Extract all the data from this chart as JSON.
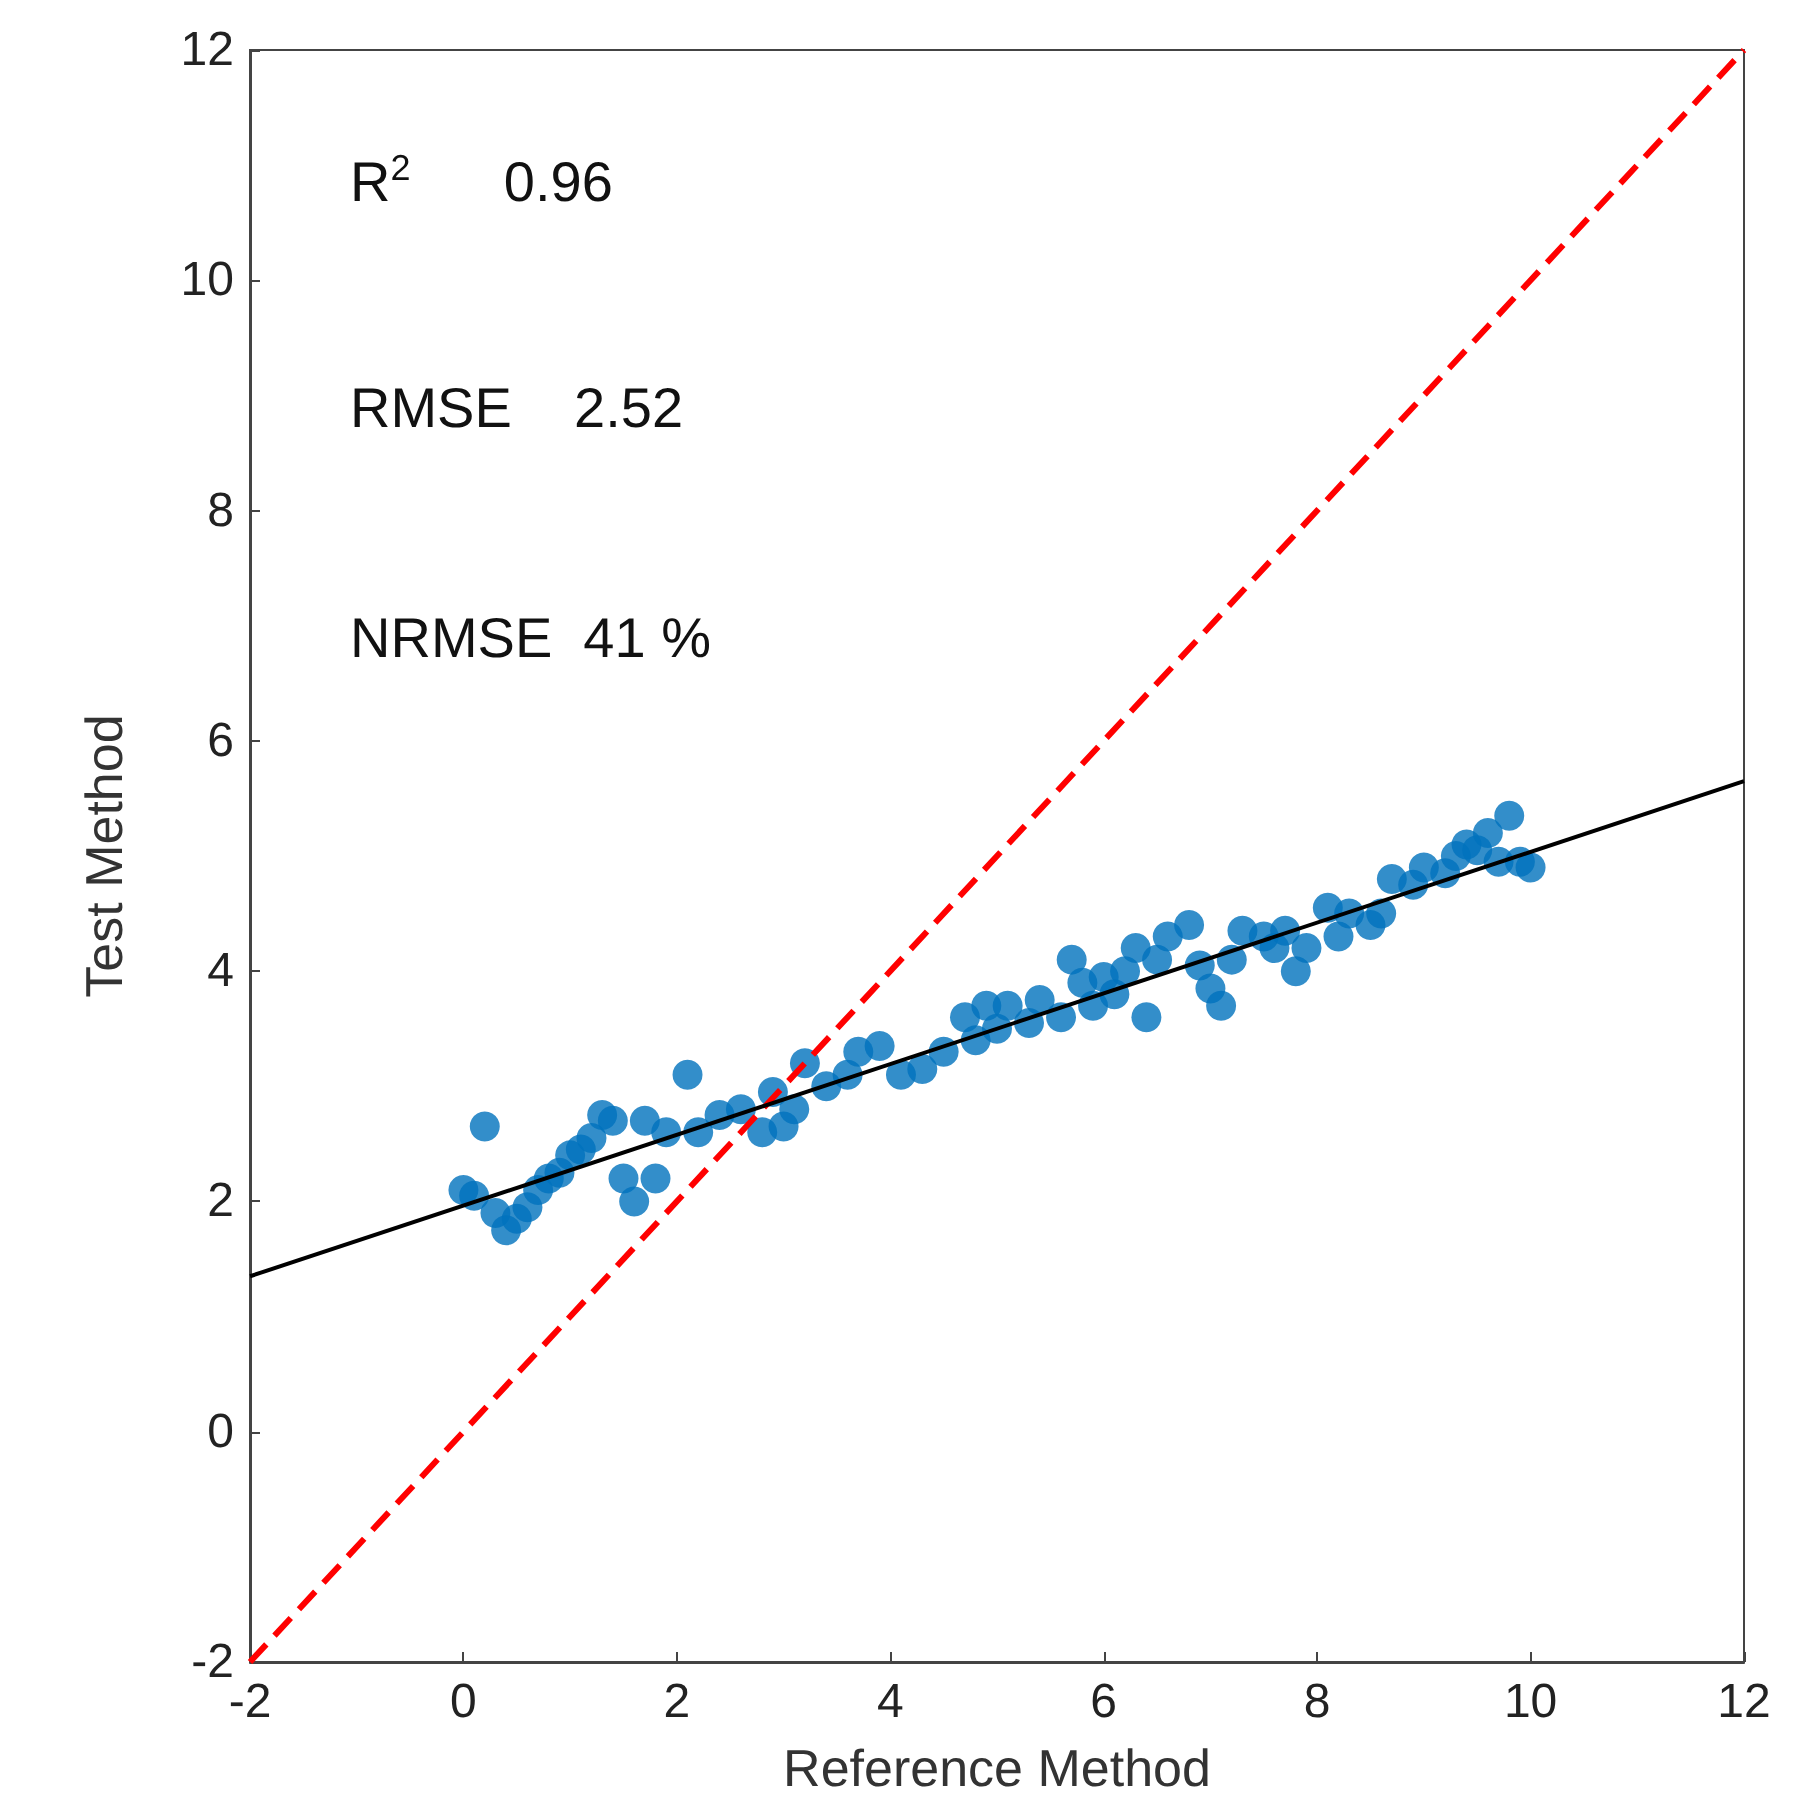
{
  "chart_data": {
    "type": "scatter",
    "xlabel": "Reference Method",
    "ylabel": "Test Method",
    "annotations": [
      "R$^{2}$      0.96",
      "RMSE    2.52",
      "NRMSE  41 %"
    ],
    "xlim": [
      -2,
      12
    ],
    "xticks": [
      -2,
      0,
      2,
      4,
      6,
      8,
      10,
      12
    ],
    "ylim": [
      -2,
      12
    ],
    "yticks": [
      -2,
      0,
      2,
      4,
      6,
      8,
      10,
      12
    ],
    "grid": false,
    "series": [
      {
        "type": "scatter",
        "color": "#0072bd",
        "marker": "circle",
        "x": [
          0,
          0.1,
          0.2,
          0.3,
          0.4,
          0.5,
          0.6,
          0.7,
          0.8,
          0.9,
          1.0,
          1.1,
          1.2,
          1.3,
          1.4,
          1.5,
          1.6,
          1.7,
          1.8,
          1.9,
          2.1,
          2.2,
          2.4,
          2.6,
          2.8,
          2.9,
          3.0,
          3.1,
          3.2,
          3.4,
          3.6,
          3.7,
          3.9,
          4.1,
          4.3,
          4.5,
          4.7,
          4.8,
          4.9,
          5.0,
          5.1,
          5.3,
          5.4,
          5.6,
          5.7,
          5.8,
          5.9,
          6.0,
          6.1,
          6.2,
          6.3,
          6.4,
          6.5,
          6.6,
          6.8,
          6.9,
          7.0,
          7.1,
          7.2,
          7.3,
          7.5,
          7.6,
          7.7,
          7.8,
          7.9,
          8.1,
          8.2,
          8.3,
          8.5,
          8.6,
          8.7,
          8.9,
          9.0,
          9.2,
          9.3,
          9.4,
          9.5,
          9.6,
          9.7,
          9.8,
          9.9,
          10.0
        ],
        "values": [
          2.1,
          2.05,
          2.65,
          1.9,
          1.75,
          1.85,
          1.95,
          2.1,
          2.2,
          2.25,
          2.4,
          2.45,
          2.55,
          2.75,
          2.7,
          2.2,
          2.0,
          2.7,
          2.2,
          2.6,
          3.1,
          2.6,
          2.75,
          2.8,
          2.6,
          2.95,
          2.65,
          2.8,
          3.2,
          3.0,
          3.1,
          3.3,
          3.35,
          3.1,
          3.15,
          3.3,
          3.6,
          3.4,
          3.7,
          3.5,
          3.7,
          3.55,
          3.75,
          3.6,
          4.1,
          3.9,
          3.7,
          3.95,
          3.8,
          4.0,
          4.2,
          3.6,
          4.1,
          4.3,
          4.4,
          4.05,
          3.85,
          3.7,
          4.1,
          4.35,
          4.3,
          4.2,
          4.35,
          4.0,
          4.2,
          4.55,
          4.3,
          4.5,
          4.4,
          4.5,
          4.8,
          4.75,
          4.9,
          4.85,
          5.0,
          5.1,
          5.05,
          5.2,
          4.95,
          5.35,
          4.95,
          4.9
        ]
      },
      {
        "type": "line",
        "color": "#ff0000",
        "line_style": "dashed",
        "marker": "none",
        "x": [
          -2,
          12
        ],
        "values": [
          -2,
          12
        ]
      },
      {
        "type": "line",
        "color": "#000000",
        "line_style": "solid",
        "marker": "none",
        "x": [
          -2,
          12
        ],
        "values": [
          1.35,
          5.65
        ]
      }
    ]
  }
}
